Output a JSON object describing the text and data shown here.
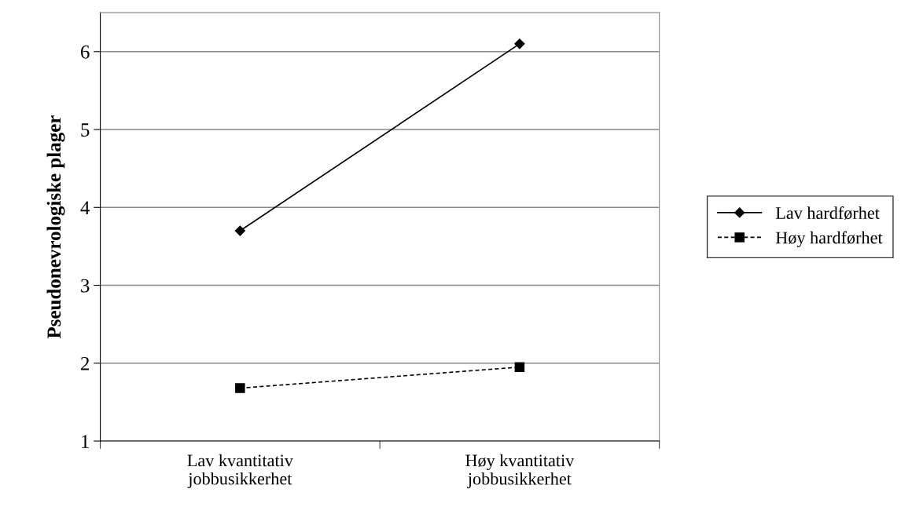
{
  "chart_data": {
    "type": "line",
    "ylabel": "Pseudonevrologiske plager",
    "categories": [
      "Lav kvantitativ\njobbusikkerhet",
      "Høy kvantitativ\njobbusikkerhet"
    ],
    "series": [
      {
        "name": "Lav hardførhet",
        "color": "#000000",
        "values": [
          3.7,
          6.1
        ],
        "marker": "diamond",
        "line_style": "solid"
      },
      {
        "name": "Høy hardførhet",
        "color": "#000000",
        "values": [
          1.68,
          1.95
        ],
        "marker": "square",
        "line_style": "dashed"
      }
    ],
    "ylim": [
      1,
      6.5
    ],
    "yticks": [
      1,
      2,
      3,
      4,
      5,
      6
    ],
    "grid": "y",
    "legend": "right"
  }
}
